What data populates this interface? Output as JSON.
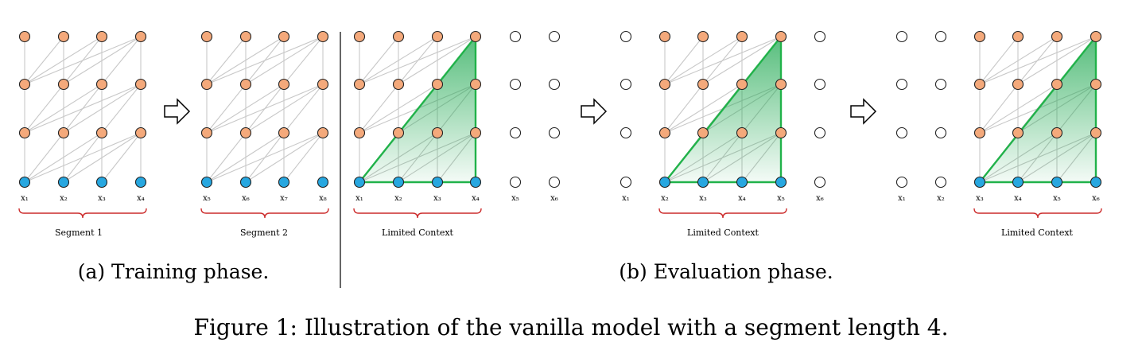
{
  "figure": {
    "caption": "Figure 1: Illustration of the vanilla model with a segment length 4.",
    "colors": {
      "hidden_node": "#f4a97b",
      "input_node": "#27a7e0",
      "empty_node": "#ffffff",
      "edge": "#c8c8c8",
      "context_fill": "#1ea850",
      "context_stroke": "#21b24a",
      "brace": "#cc2b2b",
      "arrow_stroke": "#000000"
    },
    "panels": {
      "a": {
        "caption": "(a) Training phase.",
        "segments": [
          {
            "label": "Segment 1",
            "tokens": [
              "x₁",
              "x₂",
              "x₃",
              "x₄"
            ]
          },
          {
            "label": "Segment 2",
            "tokens": [
              "x₅",
              "x₆",
              "x₇",
              "x₈"
            ]
          }
        ]
      },
      "b": {
        "caption": "(b) Evaluation phase.",
        "steps": [
          {
            "label": "Limited Context",
            "tokens": [
              "x₁",
              "x₂",
              "x₃",
              "x₄",
              "x₅",
              "x₆"
            ],
            "active_start": 0
          },
          {
            "label": "Limited Context",
            "tokens": [
              "x₁",
              "x₂",
              "x₃",
              "x₄",
              "x₅",
              "x₆"
            ],
            "active_start": 1
          },
          {
            "label": "Limited Context",
            "tokens": [
              "x₁",
              "x₂",
              "x₃",
              "x₄",
              "x₅",
              "x₆"
            ],
            "active_start": 2
          }
        ]
      }
    }
  }
}
